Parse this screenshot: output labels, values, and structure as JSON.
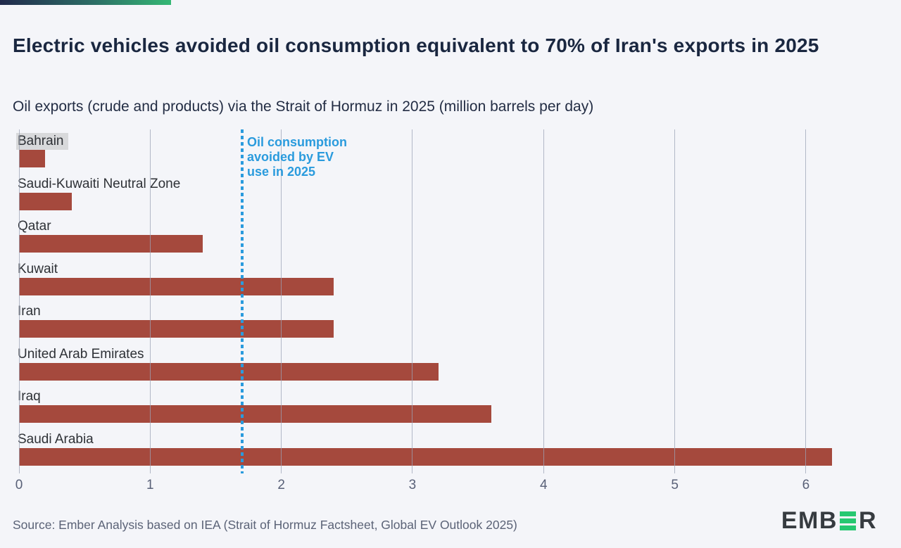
{
  "page": {
    "background": "#f4f5f9"
  },
  "brand": {
    "gradient_start": "#212a4c",
    "gradient_end": "#35b875"
  },
  "header": {
    "title": "Electric vehicles avoided oil consumption equivalent to 70% of Iran's exports in 2025",
    "subtitle": "Oil exports (crude and products) via the Strait of Hormuz in 2025 (million barrels per day)"
  },
  "chart_data": {
    "type": "bar",
    "orientation": "horizontal",
    "title": "Oil exports (crude and products) via the Strait of Hormuz in 2025",
    "unit": "million barrels per day",
    "categories": [
      "Bahrain",
      "Saudi-Kuwaiti Neutral Zone",
      "Qatar",
      "Kuwait",
      "Iran",
      "United Arab Emirates",
      "Iraq",
      "Saudi Arabia"
    ],
    "values": [
      0.2,
      0.4,
      1.4,
      2.4,
      2.4,
      3.2,
      3.6,
      6.2
    ],
    "bar_color": "#a5493d",
    "highlighted_category": "Bahrain",
    "highlight_color": "#d8d9db",
    "x_ticks": [
      "0",
      "1",
      "2",
      "3",
      "4",
      "5",
      "6"
    ],
    "x_tick_values": [
      0,
      1,
      2,
      3,
      4,
      5,
      6
    ],
    "xlim": [
      0,
      6.58
    ],
    "grid": true,
    "gridline_color": "#9ca3b5",
    "reference_line": {
      "value": 1.7,
      "color": "#2a9bdd",
      "style": "dotted",
      "label_lines": [
        "Oil consumption",
        "avoided by EV",
        "use in 2025"
      ]
    }
  },
  "footer": {
    "source": "Source: Ember Analysis based on IEA (Strait of Hormuz Factsheet, Global EV Outlook 2025)",
    "logo_text_before": "EMB",
    "logo_text_after": "R"
  }
}
